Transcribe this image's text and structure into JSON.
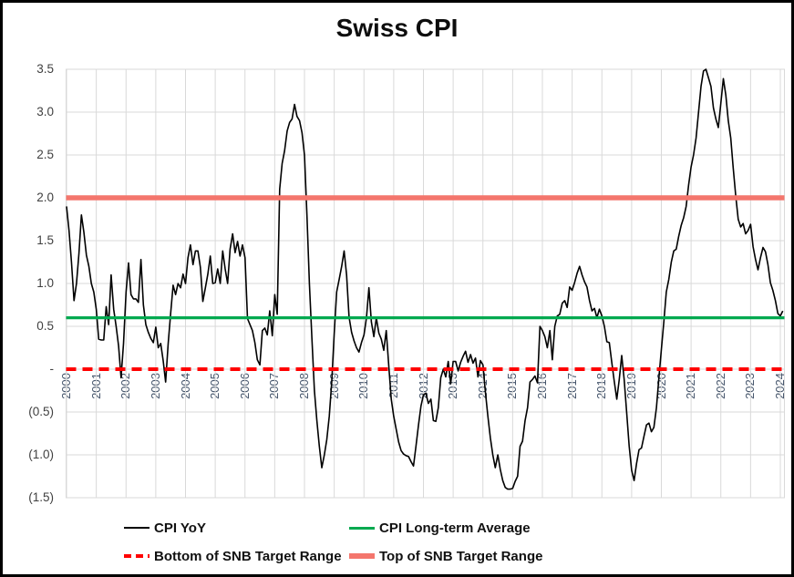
{
  "chart_data": {
    "type": "line",
    "title": "Swiss CPI",
    "xlabel": "",
    "ylabel": "",
    "ylim": [
      -1.5,
      3.5
    ],
    "xlim": [
      2000,
      2024.15
    ],
    "grid": true,
    "legend_position": "bottom",
    "x_ticks": [
      "2000",
      "2001",
      "2002",
      "2003",
      "2004",
      "2005",
      "2006",
      "2007",
      "2008",
      "2009",
      "2010",
      "2011",
      "2012",
      "2013",
      "2014",
      "2015",
      "2016",
      "2017",
      "2018",
      "2019",
      "2020",
      "2021",
      "2022",
      "2023",
      "2024"
    ],
    "y_ticks": {
      "values": [
        3.5,
        3.0,
        2.5,
        2.0,
        1.5,
        1.0,
        0.5,
        0.0,
        -0.5,
        -1.0,
        -1.5
      ],
      "labels": [
        "3.5",
        "3.0",
        "2.5",
        "2.0",
        "1.5",
        "1.0",
        "0.5",
        "-",
        "(0.5)",
        "(1.0)",
        "(1.5)"
      ]
    },
    "style": {
      "grid_color": "#D9D9D9",
      "x_tick_color": "#44546A",
      "y_tick_color": "#404040",
      "title_color": "#0d0d0d"
    },
    "series": [
      {
        "name": "CPI YoY",
        "color": "#000000",
        "width": 1.6,
        "dash": null,
        "x_start": 2000.0,
        "points_per_year": 12,
        "values": [
          1.9,
          1.62,
          1.25,
          0.8,
          1.0,
          1.35,
          1.8,
          1.6,
          1.33,
          1.2,
          1.0,
          0.9,
          0.7,
          0.35,
          0.34,
          0.34,
          0.73,
          0.52,
          1.1,
          0.7,
          0.5,
          0.27,
          -0.1,
          0.3,
          0.9,
          1.24,
          0.87,
          0.82,
          0.82,
          0.78,
          1.28,
          0.75,
          0.52,
          0.43,
          0.36,
          0.31,
          0.49,
          0.25,
          0.3,
          0.1,
          -0.15,
          0.3,
          0.65,
          0.98,
          0.87,
          1.0,
          0.95,
          1.11,
          1.0,
          1.3,
          1.45,
          1.22,
          1.38,
          1.38,
          1.19,
          0.79,
          0.95,
          1.11,
          1.32,
          1.0,
          1.01,
          1.17,
          1.0,
          1.38,
          1.17,
          1.0,
          1.4,
          1.58,
          1.36,
          1.49,
          1.32,
          1.45,
          1.3,
          0.59,
          0.52,
          0.45,
          0.31,
          0.11,
          0.05,
          0.45,
          0.48,
          0.4,
          0.68,
          0.39,
          0.87,
          0.64,
          2.1,
          2.4,
          2.55,
          2.78,
          2.88,
          2.92,
          3.09,
          2.95,
          2.9,
          2.76,
          2.5,
          1.8,
          1.0,
          0.35,
          -0.25,
          -0.6,
          -0.9,
          -1.15,
          -1.0,
          -0.82,
          -0.55,
          -0.15,
          0.41,
          0.9,
          1.05,
          1.2,
          1.38,
          1.1,
          0.61,
          0.43,
          0.33,
          0.25,
          0.2,
          0.31,
          0.4,
          0.6,
          0.95,
          0.55,
          0.38,
          0.6,
          0.42,
          0.35,
          0.22,
          0.45,
          0.05,
          -0.35,
          -0.55,
          -0.7,
          -0.85,
          -0.95,
          -0.99,
          -1.01,
          -1.02,
          -1.08,
          -1.13,
          -0.9,
          -0.65,
          -0.43,
          -0.3,
          -0.28,
          -0.4,
          -0.35,
          -0.6,
          -0.61,
          -0.45,
          -0.1,
          0.0,
          -0.09,
          0.09,
          -0.17,
          0.09,
          0.09,
          -0.02,
          0.08,
          0.15,
          0.21,
          0.08,
          0.17,
          0.07,
          0.13,
          -0.09,
          0.1,
          0.05,
          -0.27,
          -0.55,
          -0.8,
          -1.0,
          -1.15,
          -1.0,
          -1.17,
          -1.3,
          -1.38,
          -1.4,
          -1.4,
          -1.39,
          -1.31,
          -1.25,
          -0.9,
          -0.84,
          -0.6,
          -0.45,
          -0.15,
          -0.12,
          -0.08,
          -0.16,
          0.5,
          0.45,
          0.38,
          0.25,
          0.45,
          0.11,
          0.5,
          0.62,
          0.64,
          0.77,
          0.8,
          0.72,
          0.96,
          0.92,
          1.01,
          1.12,
          1.2,
          1.1,
          1.02,
          0.96,
          0.8,
          0.68,
          0.71,
          0.6,
          0.7,
          0.62,
          0.5,
          0.32,
          0.31,
          0.08,
          -0.14,
          -0.35,
          -0.12,
          0.16,
          -0.12,
          -0.5,
          -0.9,
          -1.18,
          -1.3,
          -1.1,
          -0.94,
          -0.92,
          -0.78,
          -0.65,
          -0.63,
          -0.73,
          -0.68,
          -0.45,
          -0.1,
          0.23,
          0.55,
          0.9,
          1.05,
          1.25,
          1.38,
          1.4,
          1.55,
          1.68,
          1.77,
          1.9,
          2.15,
          2.36,
          2.5,
          2.7,
          3.0,
          3.3,
          3.48,
          3.5,
          3.4,
          3.3,
          3.05,
          2.92,
          2.82,
          3.11,
          3.39,
          3.2,
          2.9,
          2.7,
          2.35,
          2.02,
          1.75,
          1.66,
          1.7,
          1.58,
          1.62,
          1.69,
          1.43,
          1.28,
          1.16,
          1.3,
          1.42,
          1.37,
          1.22,
          1.01,
          0.92,
          0.8,
          0.65,
          0.62,
          0.68
        ]
      },
      {
        "name": "CPI Long-term Average",
        "color": "#00A94F",
        "width": 3.2,
        "dash": null,
        "constant_value": 0.6
      },
      {
        "name": "Bottom of SNB Target Range",
        "color": "#FF0000",
        "width": 4,
        "dash": "11 7",
        "constant_value": 0.0
      },
      {
        "name": "Top of SNB Target Range",
        "color": "#F4766D",
        "width": 5.5,
        "dash": null,
        "constant_value": 2.0
      }
    ]
  }
}
